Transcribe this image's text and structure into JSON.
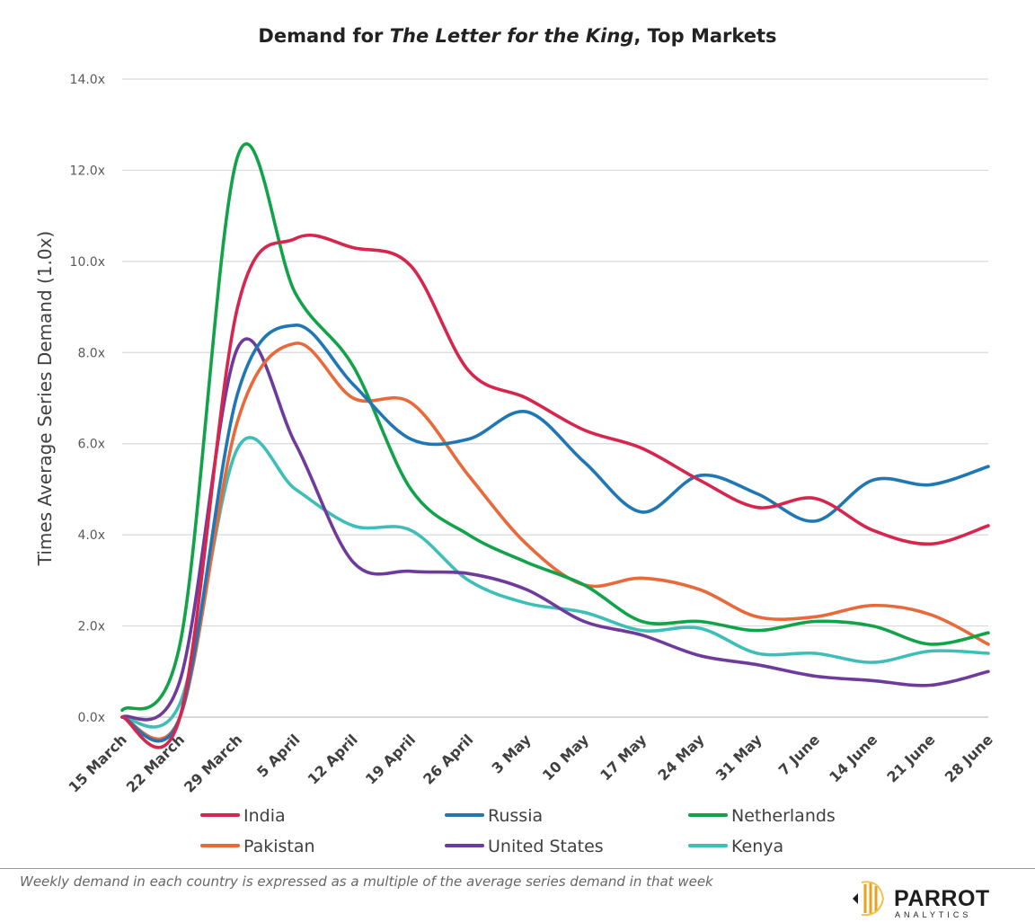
{
  "chart_data": {
    "type": "line",
    "title_prefix": "Demand for ",
    "title_italic": "The Letter for the King",
    "title_suffix": ", Top Markets",
    "xlabel": "",
    "ylabel": "Times Average Series Demand (1.0x)",
    "ylim": [
      0,
      14
    ],
    "grid": true,
    "legend_position": "bottom",
    "y_ticks": [
      "0.0x",
      "2.0x",
      "4.0x",
      "6.0x",
      "8.0x",
      "10.0x",
      "12.0x",
      "14.0x"
    ],
    "categories": [
      "15 March",
      "22 March",
      "29 March",
      "5 April",
      "12 April",
      "19 April",
      "26 April",
      "3 May",
      "10 May",
      "17 May",
      "24 May",
      "31 May",
      "7 June",
      "14 June",
      "21 June",
      "28 June"
    ],
    "series": [
      {
        "name": "India",
        "color": "#D7264D",
        "values": [
          0,
          0,
          9.0,
          10.5,
          10.3,
          9.9,
          7.6,
          7.0,
          6.3,
          5.9,
          5.2,
          4.6,
          4.8,
          4.1,
          3.8,
          4.2
        ]
      },
      {
        "name": "Russia",
        "color": "#1F77B4",
        "values": [
          0,
          0,
          7.1,
          8.6,
          7.3,
          6.1,
          6.1,
          6.7,
          5.6,
          4.5,
          5.3,
          4.9,
          4.3,
          5.2,
          5.1,
          5.5
        ]
      },
      {
        "name": "Netherlands",
        "color": "#11A24A",
        "values": [
          0.15,
          1.6,
          12.3,
          9.3,
          7.7,
          5.0,
          4.0,
          3.4,
          2.9,
          2.1,
          2.1,
          1.9,
          2.1,
          2.0,
          1.6,
          1.85
        ]
      },
      {
        "name": "Pakistan",
        "color": "#E8693A",
        "values": [
          0,
          0,
          6.5,
          8.2,
          7.0,
          6.9,
          5.3,
          3.8,
          2.9,
          3.05,
          2.8,
          2.2,
          2.2,
          2.45,
          2.25,
          1.6
        ]
      },
      {
        "name": "United States",
        "color": "#6E3A9C",
        "values": [
          0,
          0.8,
          8.1,
          6.0,
          3.4,
          3.2,
          3.15,
          2.8,
          2.1,
          1.8,
          1.35,
          1.15,
          0.9,
          0.8,
          0.7,
          1.0
        ]
      },
      {
        "name": "Kenya",
        "color": "#3DBFB8",
        "values": [
          0,
          0.3,
          5.9,
          5.0,
          4.2,
          4.1,
          3.0,
          2.5,
          2.3,
          1.9,
          1.95,
          1.4,
          1.4,
          1.2,
          1.45,
          1.4
        ]
      }
    ]
  },
  "footnote": "Weekly demand in each country is expressed as a multiple of the average series demand in that week",
  "brand": {
    "name": "PARROT",
    "sub": "ANALYTICS"
  }
}
